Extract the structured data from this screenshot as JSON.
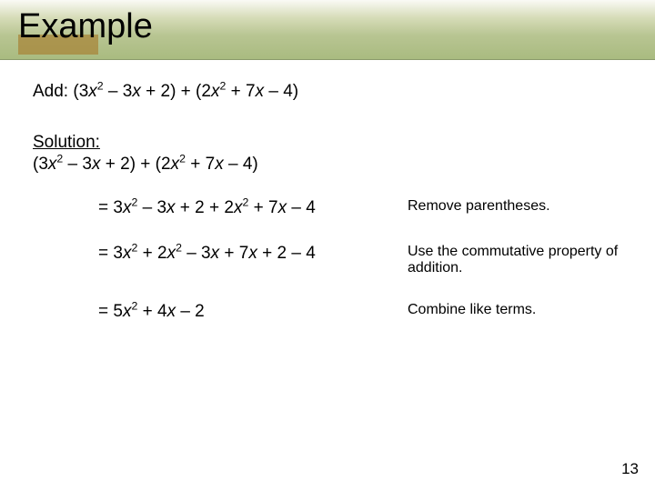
{
  "title": "Example",
  "problem_label": "Add: ",
  "problem_expr": "(3x² – 3x + 2) + (2x² + 7x – 4)",
  "solution_label": "Solution:",
  "solution_expr": "(3x² – 3x + 2) + (2x² + 7x – 4)",
  "steps": [
    {
      "expr": "= 3x² – 3x + 2 + 2x² + 7x – 4",
      "note": "Remove parentheses."
    },
    {
      "expr": "= 3x² + 2x² – 3x + 7x + 2 – 4",
      "note": "Use the commutative property of addition."
    },
    {
      "expr": "= 5x² + 4x – 2",
      "note": "Combine like terms."
    }
  ],
  "page_number": "13",
  "colors": {
    "accent": "#a8863a",
    "title_bg_top": "#fafaf5",
    "title_bg_bottom": "#a9bb80"
  },
  "typography": {
    "title_fontsize": 38,
    "body_fontsize": 19,
    "note_fontsize": 16
  }
}
